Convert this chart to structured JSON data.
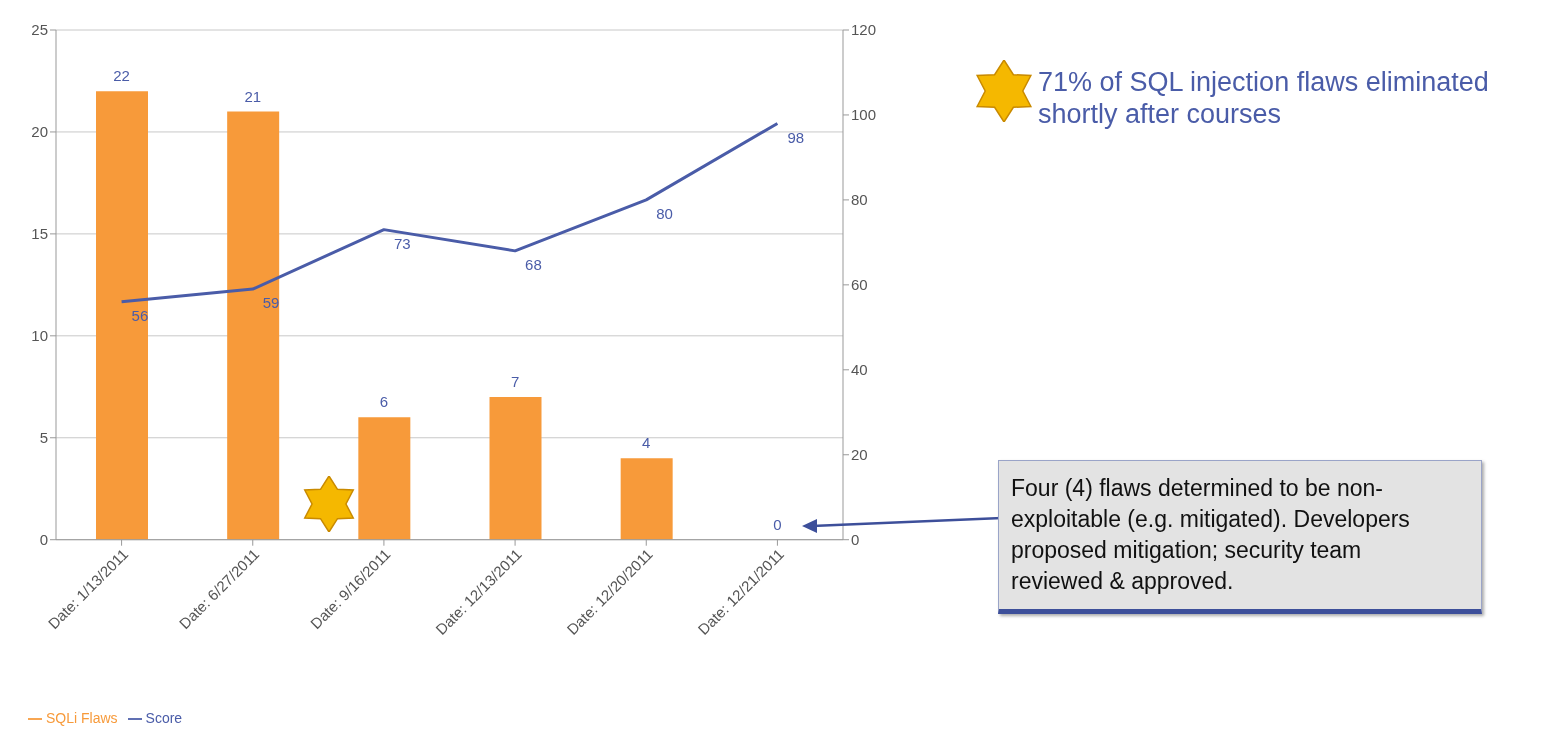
{
  "chart_data": {
    "type": "bar",
    "categories": [
      "Date: 1/13/2011",
      "Date: 6/27/2011",
      "Date: 9/16/2011",
      "Date: 12/13/2011",
      "Date: 12/20/2011",
      "Date: 12/21/2011"
    ],
    "series": [
      {
        "name": "SQLi Flaws",
        "color": "#f79a3a",
        "values": [
          22,
          21,
          6,
          7,
          4,
          0
        ]
      },
      {
        "name": "Score",
        "type": "line",
        "axis": "y2",
        "color": "#4a5ca8",
        "values": [
          56,
          59,
          73,
          68,
          80,
          98
        ]
      }
    ],
    "ylim": [
      0,
      25
    ],
    "yticks": [
      0,
      5,
      10,
      15,
      20,
      25
    ],
    "y2lim": [
      0,
      120
    ],
    "y2ticks": [
      0,
      20,
      40,
      60,
      80,
      100,
      120
    ],
    "grid": "y",
    "legend": "bottom left",
    "marker": "none",
    "line_style": "solid",
    "data_labels": true,
    "annotations": [
      "71% of SQL injection flaws eliminated shortly after courses",
      "Four (4) flaws determined to be non-exploitable (e.g. mitigated). Developers proposed mitigation; security team reviewed & approved."
    ]
  }
}
